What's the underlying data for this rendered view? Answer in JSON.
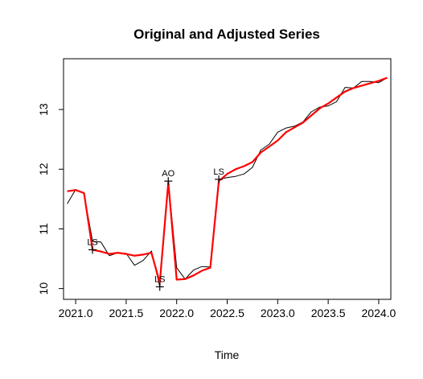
{
  "chart_data": {
    "type": "line",
    "title": "Original and Adjusted Series",
    "xlabel": "Time",
    "ylabel": "",
    "xlim": [
      2020.88,
      2024.12
    ],
    "ylim": [
      9.82,
      13.85
    ],
    "x_ticks": [
      2021.0,
      2021.5,
      2022.0,
      2022.5,
      2023.0,
      2023.5,
      2024.0
    ],
    "x_tick_labels": [
      "2021.0",
      "2021.5",
      "2022.0",
      "2022.5",
      "2023.0",
      "2023.5",
      "2024.0"
    ],
    "y_ticks": [
      10,
      11,
      12,
      13
    ],
    "y_tick_labels": [
      "10",
      "11",
      "12",
      "13"
    ],
    "grid": false,
    "series": [
      {
        "color": "#000000",
        "x": [
          2020.917,
          2021.0,
          2021.083,
          2021.167,
          2021.25,
          2021.333,
          2021.417,
          2021.5,
          2021.583,
          2021.667,
          2021.75,
          2021.833,
          2021.917,
          2022.0,
          2022.083,
          2022.167,
          2022.25,
          2022.333,
          2022.417,
          2022.5,
          2022.583,
          2022.667,
          2022.75,
          2022.833,
          2022.917,
          2023.0,
          2023.083,
          2023.167,
          2023.25,
          2023.333,
          2023.417,
          2023.5,
          2023.583,
          2023.667,
          2023.75,
          2023.833,
          2023.917,
          2024.0,
          2024.083
        ],
        "values": [
          11.42,
          11.66,
          11.59,
          10.79,
          10.78,
          10.55,
          10.6,
          10.59,
          10.39,
          10.47,
          10.63,
          10.03,
          11.8,
          10.35,
          10.16,
          10.31,
          10.37,
          10.36,
          11.83,
          11.86,
          11.88,
          11.92,
          12.03,
          12.32,
          12.42,
          12.62,
          12.69,
          12.72,
          12.79,
          12.96,
          13.04,
          13.06,
          13.13,
          13.37,
          13.36,
          13.47,
          13.47,
          13.45,
          13.53
        ]
      },
      {
        "color": "#ff0000",
        "x": [
          2020.917,
          2021.0,
          2021.083,
          2021.167,
          2021.25,
          2021.333,
          2021.417,
          2021.5,
          2021.583,
          2021.667,
          2021.75,
          2021.833,
          2021.917,
          2022.0,
          2022.083,
          2022.167,
          2022.25,
          2022.333,
          2022.417,
          2022.5,
          2022.583,
          2022.667,
          2022.75,
          2022.833,
          2022.917,
          2023.0,
          2023.083,
          2023.167,
          2023.25,
          2023.333,
          2023.417,
          2023.5,
          2023.583,
          2023.667,
          2023.75,
          2023.833,
          2023.917,
          2024.0,
          2024.083
        ],
        "values": [
          11.63,
          11.65,
          11.6,
          10.65,
          10.62,
          10.58,
          10.6,
          10.58,
          10.55,
          10.57,
          10.6,
          10.1,
          11.78,
          10.15,
          10.16,
          10.22,
          10.3,
          10.35,
          11.8,
          11.92,
          12.0,
          12.05,
          12.12,
          12.28,
          12.38,
          12.48,
          12.62,
          12.7,
          12.78,
          12.9,
          13.02,
          13.1,
          13.2,
          13.3,
          13.36,
          13.4,
          13.44,
          13.48,
          13.53
        ]
      }
    ],
    "annotations": [
      {
        "label": "LS",
        "x": 2021.167,
        "y": 10.65
      },
      {
        "label": "LS",
        "x": 2021.833,
        "y": 10.03
      },
      {
        "label": "AO",
        "x": 2021.917,
        "y": 11.8
      },
      {
        "label": "LS",
        "x": 2022.417,
        "y": 11.83
      }
    ]
  }
}
